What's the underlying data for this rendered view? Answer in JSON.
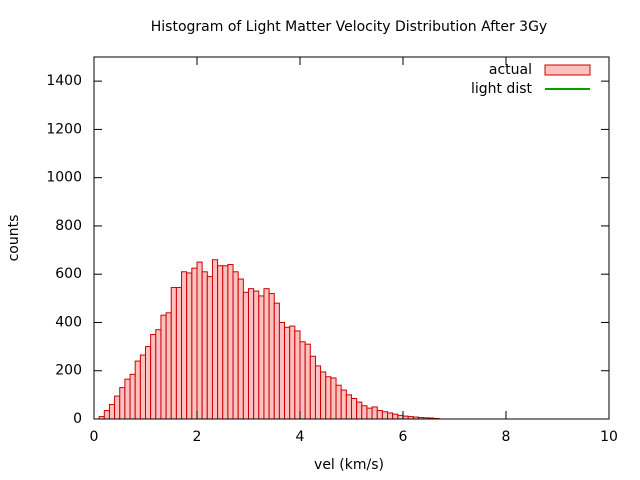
{
  "chart_data": {
    "type": "histogram",
    "title": "Histogram of Light Matter Velocity Distribution After 3Gy",
    "xlabel": "vel (km/s)",
    "ylabel": "counts",
    "bins": [
      0.1,
      0.2,
      0.3,
      0.4,
      0.5,
      0.6,
      0.7,
      0.8,
      0.9,
      1.0,
      1.1,
      1.2,
      1.3,
      1.4,
      1.5,
      1.6,
      1.7,
      1.8,
      1.9,
      2.0,
      2.1,
      2.2,
      2.3,
      2.4,
      2.5,
      2.6,
      2.7,
      2.8,
      2.9,
      3.0,
      3.1,
      3.2,
      3.3,
      3.4,
      3.5,
      3.6,
      3.7,
      3.8,
      3.9,
      4.0,
      4.1,
      4.2,
      4.3,
      4.4,
      4.5,
      4.6,
      4.7,
      4.8,
      4.9,
      5.0,
      5.1,
      5.2,
      5.3,
      5.4,
      5.5,
      5.6,
      5.7,
      5.8,
      5.9,
      6.0,
      6.1,
      6.2,
      6.3,
      6.4,
      6.5,
      6.6,
      6.7
    ],
    "series": [
      {
        "name": "actual",
        "color": "#cc0000",
        "fill": "#ffc0c0",
        "values": [
          10,
          35,
          60,
          95,
          130,
          165,
          185,
          240,
          265,
          300,
          350,
          370,
          430,
          440,
          545,
          545,
          610,
          605,
          625,
          650,
          610,
          590,
          660,
          635,
          635,
          640,
          610,
          580,
          525,
          540,
          530,
          510,
          540,
          520,
          480,
          400,
          380,
          385,
          365,
          320,
          310,
          260,
          220,
          195,
          175,
          170,
          140,
          120,
          100,
          85,
          70,
          55,
          45,
          50,
          35,
          30,
          25,
          20,
          15,
          12,
          10,
          8,
          6,
          5,
          4,
          2
        ]
      },
      {
        "name": "light dist",
        "color": "#00a000"
      }
    ],
    "xlim": [
      0,
      10
    ],
    "ylim": [
      0,
      1500
    ],
    "xticks": [
      0,
      2,
      4,
      6,
      8,
      10
    ],
    "yticks": [
      0,
      200,
      400,
      600,
      800,
      1000,
      1200,
      1400
    ],
    "legend": "top-right"
  }
}
